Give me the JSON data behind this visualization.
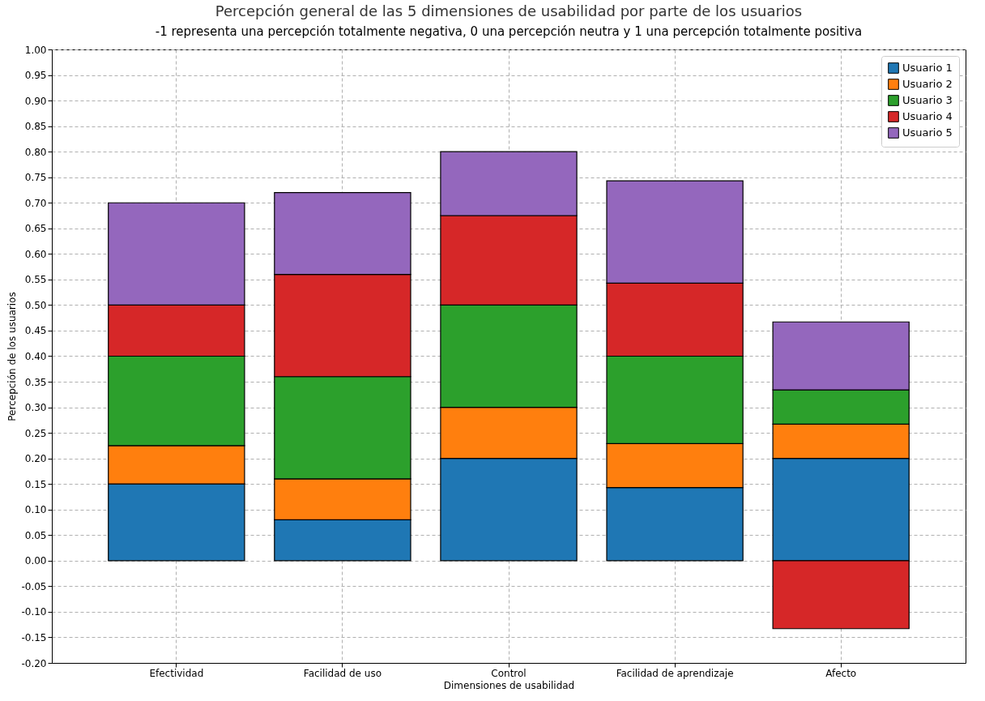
{
  "chart_data": {
    "type": "bar",
    "title": "Percepción general de las 5 dimensiones de usabilidad por parte de los usuarios",
    "subtitle": "-1 representa una percepción totalmente negativa, 0 una  percepción neutra y 1 una percepción totalmente positiva",
    "xlabel": "Dimensiones de usabilidad",
    "ylabel": "Percepción de los usuarios",
    "categories": [
      "Efectividad",
      "Facilidad de uso",
      "Control",
      "Facilidad de aprendizaje",
      "Afecto"
    ],
    "stacked": true,
    "series": [
      {
        "name": "Usuario 1",
        "color": "#1f77b4",
        "values": [
          0.15,
          0.08,
          0.2,
          0.143,
          0.2
        ]
      },
      {
        "name": "Usuario 2",
        "color": "#ff7f0e",
        "values": [
          0.075,
          0.08,
          0.1,
          0.086,
          0.067
        ]
      },
      {
        "name": "Usuario 3",
        "color": "#2ca02c",
        "values": [
          0.175,
          0.2,
          0.2,
          0.171,
          0.067
        ]
      },
      {
        "name": "Usuario 4",
        "color": "#d62728",
        "values": [
          0.1,
          0.2,
          0.175,
          0.143,
          -0.133
        ]
      },
      {
        "name": "Usuario 5",
        "color": "#9467bd",
        "values": [
          0.2,
          0.16,
          0.125,
          0.2,
          0.133
        ]
      }
    ],
    "ylim": [
      -0.2,
      1.0
    ],
    "yticks": [
      {
        "value": -0.2,
        "label": "-0.20"
      },
      {
        "value": -0.15,
        "label": "-0.15"
      },
      {
        "value": -0.1,
        "label": "-0.10"
      },
      {
        "value": -0.05,
        "label": "-0.05"
      },
      {
        "value": 0,
        "label": "0.00"
      },
      {
        "value": 0.05,
        "label": "0.05"
      },
      {
        "value": 0.1,
        "label": "0.10"
      },
      {
        "value": 0.15,
        "label": "0.15"
      },
      {
        "value": 0.2,
        "label": "0.20"
      },
      {
        "value": 0.25,
        "label": "0.25"
      },
      {
        "value": 0.3,
        "label": "0.30"
      },
      {
        "value": 0.35,
        "label": "0.35"
      },
      {
        "value": 0.4,
        "label": "0.40"
      },
      {
        "value": 0.45,
        "label": "0.45"
      },
      {
        "value": 0.5,
        "label": "0.50"
      },
      {
        "value": 0.55,
        "label": "0.55"
      },
      {
        "value": 0.6,
        "label": "0.60"
      },
      {
        "value": 0.65,
        "label": "0.65"
      },
      {
        "value": 0.7,
        "label": "0.70"
      },
      {
        "value": 0.75,
        "label": "0.75"
      },
      {
        "value": 0.8,
        "label": "0.80"
      },
      {
        "value": 0.85,
        "label": "0.85"
      },
      {
        "value": 0.9,
        "label": "0.90"
      },
      {
        "value": 0.95,
        "label": "0.95"
      },
      {
        "value": 1.0,
        "label": "1.00"
      }
    ],
    "grid": true,
    "legend": "top right"
  }
}
